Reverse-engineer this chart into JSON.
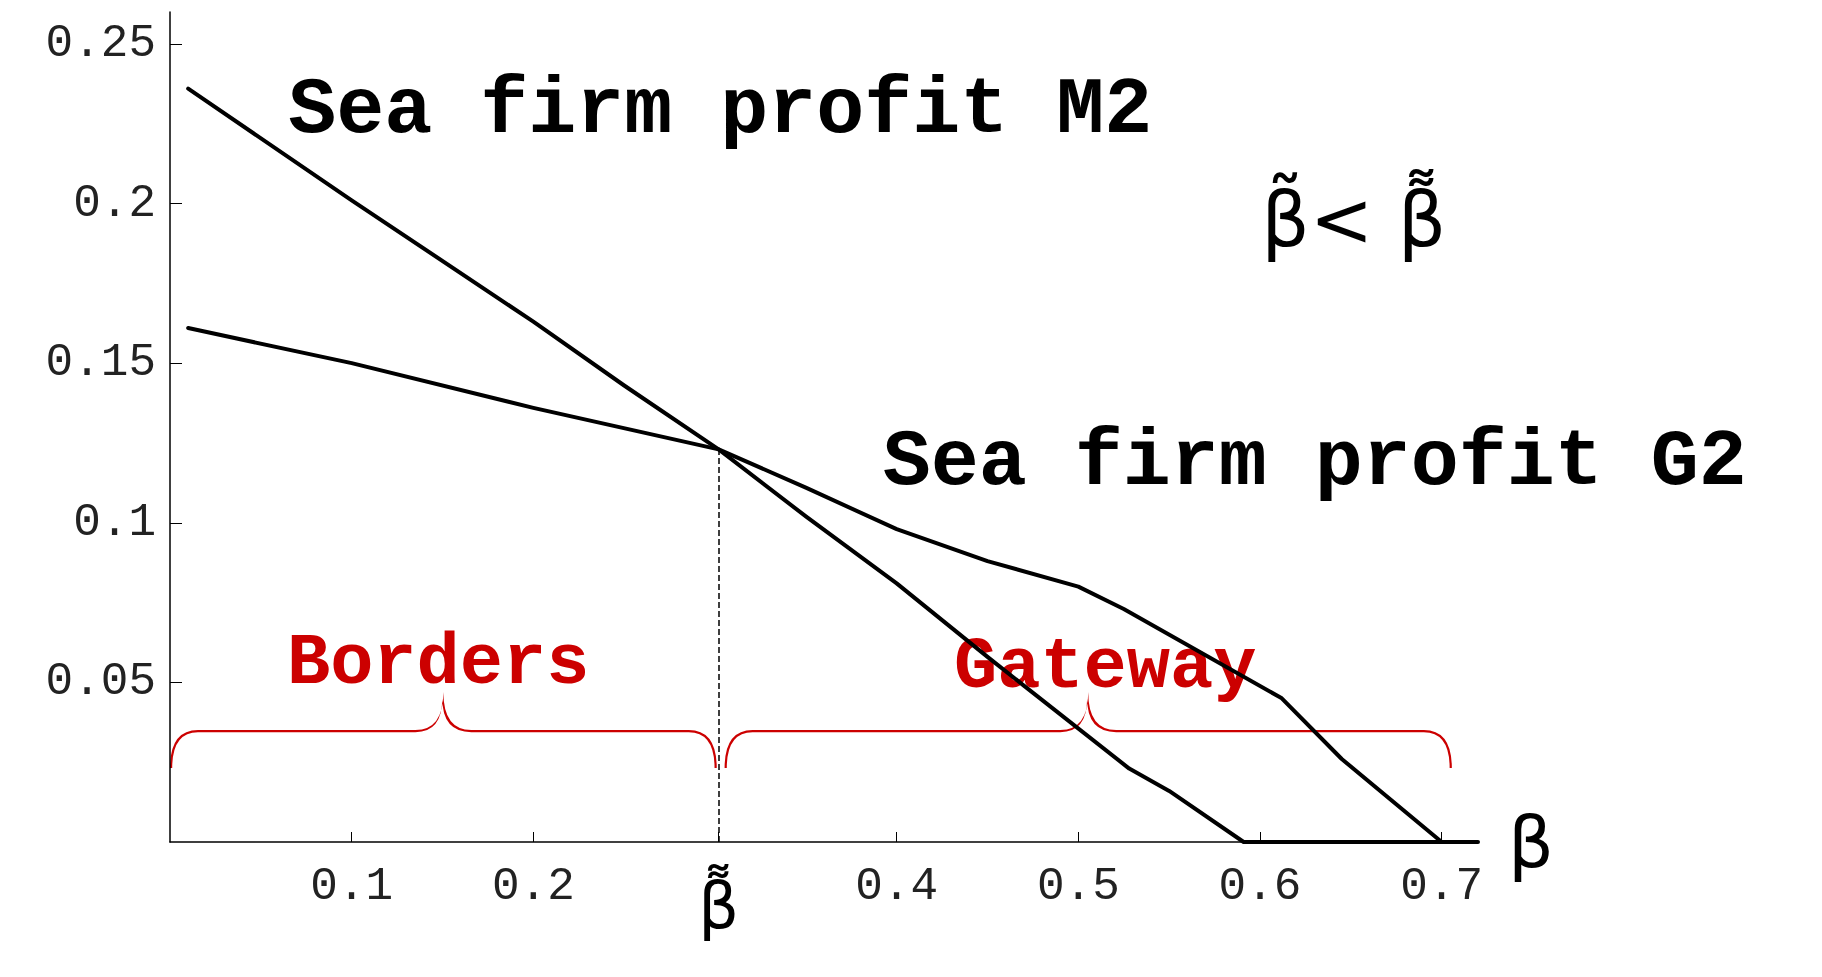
{
  "chart_data": {
    "type": "line",
    "xlabel": "β",
    "xlim": [
      0,
      0.72
    ],
    "xticks": [
      0.1,
      0.2,
      {
        "value": 0.302,
        "label": "β͌"
      },
      0.4,
      0.5,
      0.6,
      0.7
    ],
    "ylim": [
      0,
      0.26
    ],
    "yticks": [
      0.05,
      0.1,
      0.15,
      0.2,
      0.25
    ],
    "grid": false,
    "legend": false,
    "marker": "none",
    "line_style": "solid",
    "series": [
      {
        "name": "Sea firm profit M2",
        "color": "#000000",
        "x": [
          0.01,
          0.1,
          0.2,
          0.25,
          0.302,
          0.35,
          0.4,
          0.45,
          0.47,
          0.528,
          0.55,
          0.591,
          0.72
        ],
        "values": [
          0.236,
          0.201,
          0.163,
          0.143,
          0.123,
          0.102,
          0.081,
          0.058,
          0.049,
          0.023,
          0.016,
          0,
          0
        ]
      },
      {
        "name": "Sea firm profit G2",
        "color": "#000000",
        "x": [
          0.01,
          0.1,
          0.2,
          0.302,
          0.35,
          0.4,
          0.45,
          0.5,
          0.525,
          0.612,
          0.645,
          0.7
        ],
        "values": [
          0.161,
          0.15,
          0.136,
          0.123,
          0.111,
          0.098,
          0.088,
          0.08,
          0.073,
          0.045,
          0.026,
          0
        ]
      }
    ],
    "ref_lines": [
      {
        "axis": "x",
        "value": 0.302,
        "color": "#000000",
        "line_style": "dashed"
      }
    ],
    "annotations": [
      "β̃< β͌",
      "Borders",
      "Gateway"
    ]
  }
}
